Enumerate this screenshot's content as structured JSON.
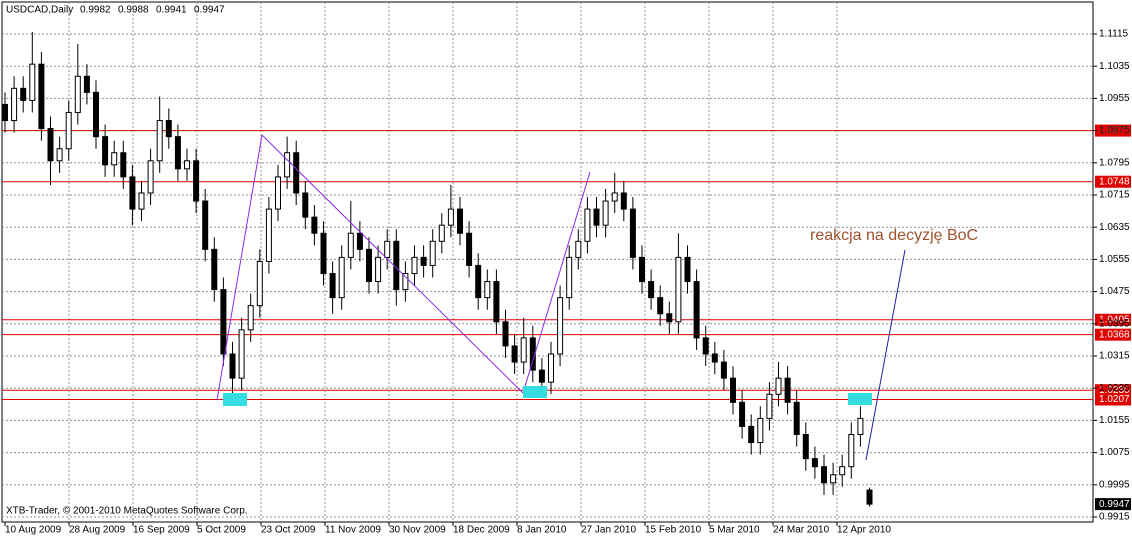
{
  "chart_data": {
    "type": "candlestick",
    "symbol": "USDCAD,Daily",
    "footer": "XTB-Trader, © 2001-2010 MetaQuotes Software Corp.",
    "annotation": "reakcja na decyzję BoC",
    "ylim": [
      0.99026,
      1.11945
    ],
    "yticks": [
      1.1115,
      1.1035,
      1.0955,
      1.0875,
      1.0795,
      1.0715,
      1.0635,
      1.0555,
      1.0475,
      1.0395,
      1.0315,
      1.0235,
      1.0155,
      1.0075,
      0.9995,
      0.9915
    ],
    "levels": [
      1.0875,
      1.0748,
      1.0405,
      1.0368,
      {
        "value": 1.023,
        "label": "1.0230"
      },
      1.0207
    ],
    "level_color": "#e00000",
    "candle_color": "#000000",
    "grid": true,
    "date_labels": [
      "10 Aug 2009",
      "28 Aug 2009",
      "16 Sep 2009",
      "5 Oct 2009",
      "23 Oct 2009",
      "11 Nov 2009",
      "30 Nov 2009",
      "18 Dec 2009",
      "8 Jan 2010",
      "27 Jan 2010",
      "15 Feb 2010",
      "5 Mar 2010",
      "24 Mar 2010",
      "12 Apr 2010"
    ],
    "ohlc": [
      [
        1.094,
        1.097,
        1.087,
        1.09
      ],
      [
        1.09,
        1.101,
        1.087,
        1.098
      ],
      [
        1.098,
        1.101,
        1.092,
        1.095
      ],
      [
        1.095,
        1.112,
        1.092,
        1.104
      ],
      [
        1.104,
        1.107,
        1.085,
        1.088
      ],
      [
        1.088,
        1.091,
        1.074,
        1.08
      ],
      [
        1.08,
        1.086,
        1.077,
        1.083
      ],
      [
        1.083,
        1.095,
        1.08,
        1.092
      ],
      [
        1.092,
        1.109,
        1.089,
        1.101
      ],
      [
        1.101,
        1.104,
        1.094,
        1.097
      ],
      [
        1.097,
        1.1,
        1.083,
        1.086
      ],
      [
        1.086,
        1.089,
        1.076,
        1.079
      ],
      [
        1.079,
        1.085,
        1.076,
        1.082
      ],
      [
        1.082,
        1.085,
        1.073,
        1.076
      ],
      [
        1.076,
        1.079,
        1.064,
        1.068
      ],
      [
        1.068,
        1.075,
        1.065,
        1.072
      ],
      [
        1.072,
        1.083,
        1.069,
        1.08
      ],
      [
        1.08,
        1.096,
        1.077,
        1.09
      ],
      [
        1.09,
        1.093,
        1.083,
        1.086
      ],
      [
        1.086,
        1.089,
        1.075,
        1.078
      ],
      [
        1.078,
        1.083,
        1.075,
        1.08
      ],
      [
        1.08,
        1.083,
        1.067,
        1.07
      ],
      [
        1.07,
        1.073,
        1.055,
        1.058
      ],
      [
        1.058,
        1.061,
        1.045,
        1.048
      ],
      [
        1.048,
        1.051,
        1.029,
        1.032
      ],
      [
        1.032,
        1.035,
        1.022,
        1.026
      ],
      [
        1.026,
        1.041,
        1.023,
        1.038
      ],
      [
        1.038,
        1.047,
        1.035,
        1.044
      ],
      [
        1.044,
        1.058,
        1.041,
        1.055
      ],
      [
        1.055,
        1.071,
        1.052,
        1.068
      ],
      [
        1.068,
        1.079,
        1.065,
        1.076
      ],
      [
        1.076,
        1.086,
        1.073,
        1.082
      ],
      [
        1.082,
        1.085,
        1.069,
        1.072
      ],
      [
        1.072,
        1.075,
        1.063,
        1.066
      ],
      [
        1.066,
        1.069,
        1.059,
        1.062
      ],
      [
        1.062,
        1.065,
        1.049,
        1.052
      ],
      [
        1.052,
        1.055,
        1.042,
        1.046
      ],
      [
        1.046,
        1.059,
        1.043,
        1.056
      ],
      [
        1.056,
        1.07,
        1.053,
        1.062
      ],
      [
        1.062,
        1.065,
        1.055,
        1.058
      ],
      [
        1.058,
        1.061,
        1.047,
        1.05
      ],
      [
        1.05,
        1.059,
        1.047,
        1.056
      ],
      [
        1.056,
        1.063,
        1.053,
        1.06
      ],
      [
        1.06,
        1.063,
        1.044,
        1.048
      ],
      [
        1.048,
        1.055,
        1.045,
        1.052
      ],
      [
        1.052,
        1.059,
        1.049,
        1.056
      ],
      [
        1.056,
        1.059,
        1.051,
        1.054
      ],
      [
        1.054,
        1.063,
        1.051,
        1.06
      ],
      [
        1.06,
        1.067,
        1.057,
        1.064
      ],
      [
        1.064,
        1.074,
        1.061,
        1.068
      ],
      [
        1.068,
        1.071,
        1.059,
        1.062
      ],
      [
        1.062,
        1.065,
        1.051,
        1.054
      ],
      [
        1.054,
        1.057,
        1.043,
        1.046
      ],
      [
        1.046,
        1.053,
        1.043,
        1.05
      ],
      [
        1.05,
        1.053,
        1.037,
        1.04
      ],
      [
        1.04,
        1.043,
        1.031,
        1.034
      ],
      [
        1.034,
        1.037,
        1.027,
        1.03
      ],
      [
        1.03,
        1.041,
        1.027,
        1.036
      ],
      [
        1.036,
        1.039,
        1.025,
        1.028
      ],
      [
        1.028,
        1.031,
        1.022,
        1.025
      ],
      [
        1.025,
        1.035,
        1.022,
        1.032
      ],
      [
        1.032,
        1.049,
        1.029,
        1.046
      ],
      [
        1.046,
        1.059,
        1.043,
        1.056
      ],
      [
        1.056,
        1.063,
        1.053,
        1.06
      ],
      [
        1.06,
        1.071,
        1.057,
        1.068
      ],
      [
        1.068,
        1.071,
        1.061,
        1.064
      ],
      [
        1.064,
        1.073,
        1.061,
        1.07
      ],
      [
        1.07,
        1.077,
        1.067,
        1.072
      ],
      [
        1.072,
        1.075,
        1.065,
        1.068
      ],
      [
        1.068,
        1.071,
        1.053,
        1.056
      ],
      [
        1.056,
        1.059,
        1.047,
        1.05
      ],
      [
        1.05,
        1.053,
        1.043,
        1.046
      ],
      [
        1.046,
        1.049,
        1.039,
        1.042
      ],
      [
        1.042,
        1.045,
        1.037,
        1.04
      ],
      [
        1.04,
        1.062,
        1.037,
        1.056
      ],
      [
        1.056,
        1.059,
        1.047,
        1.05
      ],
      [
        1.05,
        1.053,
        1.033,
        1.036
      ],
      [
        1.036,
        1.039,
        1.029,
        1.032
      ],
      [
        1.032,
        1.035,
        1.027,
        1.03
      ],
      [
        1.03,
        1.033,
        1.023,
        1.026
      ],
      [
        1.026,
        1.029,
        1.017,
        1.02
      ],
      [
        1.02,
        1.023,
        1.011,
        1.014
      ],
      [
        1.014,
        1.017,
        1.007,
        1.01
      ],
      [
        1.01,
        1.019,
        1.007,
        1.016
      ],
      [
        1.016,
        1.025,
        1.013,
        1.022
      ],
      [
        1.022,
        1.03,
        1.019,
        1.026
      ],
      [
        1.026,
        1.029,
        1.017,
        1.02
      ],
      [
        1.02,
        1.023,
        1.009,
        1.012
      ],
      [
        1.012,
        1.015,
        1.003,
        1.006
      ],
      [
        1.006,
        1.009,
        1.001,
        1.004
      ],
      [
        1.004,
        1.007,
        0.997,
        1.0
      ],
      [
        1.0,
        1.005,
        0.997,
        1.002
      ],
      [
        1.002,
        1.007,
        0.999,
        1.004
      ],
      [
        1.004,
        1.015,
        1.001,
        1.012
      ],
      [
        1.012,
        1.019,
        1.009,
        1.016
      ],
      [
        0.9982,
        0.9988,
        0.9941,
        0.9947
      ]
    ]
  }
}
